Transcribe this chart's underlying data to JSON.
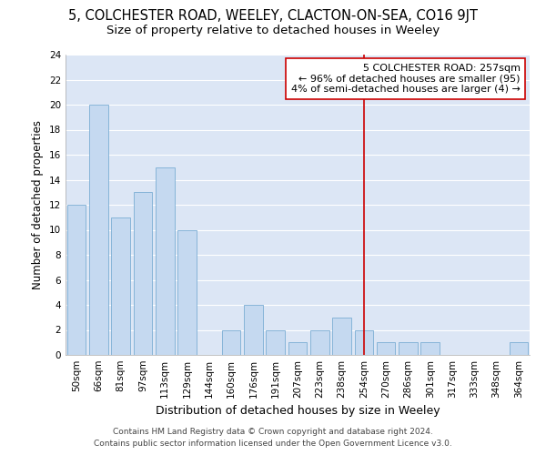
{
  "title": "5, COLCHESTER ROAD, WEELEY, CLACTON-ON-SEA, CO16 9JT",
  "subtitle": "Size of property relative to detached houses in Weeley",
  "xlabel": "Distribution of detached houses by size in Weeley",
  "ylabel": "Number of detached properties",
  "categories": [
    "50sqm",
    "66sqm",
    "81sqm",
    "97sqm",
    "113sqm",
    "129sqm",
    "144sqm",
    "160sqm",
    "176sqm",
    "191sqm",
    "207sqm",
    "223sqm",
    "238sqm",
    "254sqm",
    "270sqm",
    "286sqm",
    "301sqm",
    "317sqm",
    "333sqm",
    "348sqm",
    "364sqm"
  ],
  "values": [
    12,
    20,
    11,
    13,
    15,
    10,
    0,
    2,
    4,
    2,
    1,
    2,
    3,
    2,
    1,
    1,
    1,
    0,
    0,
    0,
    1
  ],
  "bar_color": "#c5d9f0",
  "bar_edge_color": "#7badd4",
  "vline_x_index": 13,
  "vline_color": "#cc0000",
  "annotation_title": "5 COLCHESTER ROAD: 257sqm",
  "annotation_line2": "← 96% of detached houses are smaller (95)",
  "annotation_line3": "4% of semi-detached houses are larger (4) →",
  "annotation_box_color": "#ffffff",
  "annotation_box_edge": "#cc0000",
  "ylim": [
    0,
    24
  ],
  "yticks": [
    0,
    2,
    4,
    6,
    8,
    10,
    12,
    14,
    16,
    18,
    20,
    22,
    24
  ],
  "fig_bg_color": "#ffffff",
  "plot_bg_color": "#dce6f5",
  "grid_color": "#ffffff",
  "footer_line1": "Contains HM Land Registry data © Crown copyright and database right 2024.",
  "footer_line2": "Contains public sector information licensed under the Open Government Licence v3.0.",
  "title_fontsize": 10.5,
  "subtitle_fontsize": 9.5,
  "xlabel_fontsize": 9,
  "ylabel_fontsize": 8.5,
  "tick_fontsize": 7.5,
  "annot_fontsize": 8,
  "footer_fontsize": 6.5
}
